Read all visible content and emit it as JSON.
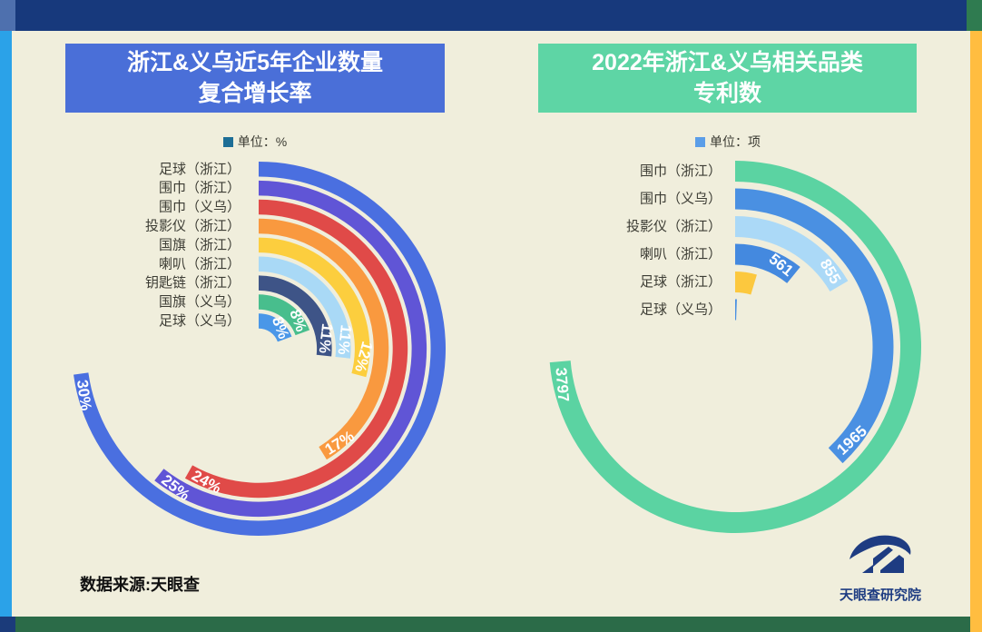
{
  "meta": {
    "background_color": "#f0eedc"
  },
  "frame": {
    "top_bar_color": "#17397c",
    "top_left_accent_color": "#4e70ae",
    "top_right_accent_color": "#2f7b50",
    "left_stripe_color": "#2ba2e8",
    "right_stripe_color": "#ffbd40",
    "bottom_bar_color": "#2b6b48",
    "bottom_left_accent_color": "#1b3b7a"
  },
  "footer": {
    "source_note": "数据来源:天眼查"
  },
  "logo": {
    "text": "天眼查研究院",
    "color": "#1e3c82"
  },
  "chart_data": [
    {
      "type": "radial-bar",
      "title": "浙江&义乌近5年企业数量复合增长率",
      "title_lines": [
        "浙江&义乌近5年企业数量",
        "复合增长率"
      ],
      "title_bg": "#4a6fd8",
      "unit_label": "单位：%",
      "unit_square_color": "#1d6e96",
      "start_angle": "12-oclock",
      "direction": "clockwise",
      "categories": [
        "足球（浙江）",
        "围巾（浙江）",
        "围巾（义乌）",
        "投影仪（浙江）",
        "国旗（浙江）",
        "喇叭（浙江）",
        "钥匙链（浙江）",
        "国旗（义乌）",
        "足球（义乌）"
      ],
      "values": [
        30,
        25,
        24,
        17,
        12,
        11,
        11,
        8,
        8
      ],
      "value_labels": [
        "30%",
        "25%",
        "24%",
        "17%",
        "12%",
        "11%",
        "11%",
        "8%",
        "8%"
      ],
      "colors": [
        "#4a6fe0",
        "#6055d6",
        "#e04a48",
        "#f9993f",
        "#fcce3e",
        "#a9d9f6",
        "#3e5487",
        "#48be8d",
        "#4a97e8"
      ]
    },
    {
      "type": "radial-bar",
      "title": "2022年浙江&义乌相关品类专利数",
      "title_lines": [
        "2022年浙江&义乌相关品类",
        "专利数"
      ],
      "title_bg": "#5ed5a5",
      "unit_label": "单位：项",
      "unit_square_color": "#5b9ee8",
      "start_angle": "12-oclock",
      "direction": "clockwise",
      "categories": [
        "围巾（浙江）",
        "围巾（义乌）",
        "投影仪（浙江）",
        "喇叭（浙江）",
        "足球（浙江）",
        "足球（义乌）"
      ],
      "values": [
        3797,
        1965,
        855,
        561,
        240,
        30
      ],
      "value_labels": [
        "3797",
        "1965",
        "855",
        "561",
        "",
        ""
      ],
      "values_estimated": [
        false,
        false,
        false,
        false,
        true,
        true
      ],
      "colors": [
        "#5bd3a2",
        "#4a90e2",
        "#abd9f7",
        "#4489df",
        "#fcc83e",
        "#4a90e2"
      ]
    }
  ]
}
